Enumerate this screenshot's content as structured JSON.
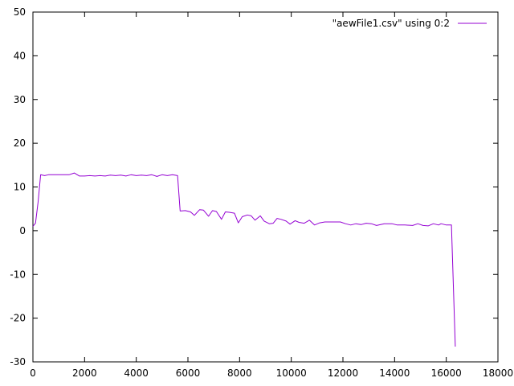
{
  "chart_data": {
    "type": "line",
    "title": "",
    "xlabel": "",
    "ylabel": "",
    "xlim": [
      0,
      18000
    ],
    "ylim": [
      -30,
      50
    ],
    "x_ticks": [
      0,
      2000,
      4000,
      6000,
      8000,
      10000,
      12000,
      14000,
      16000,
      18000
    ],
    "y_ticks": [
      -30,
      -20,
      -10,
      0,
      10,
      20,
      30,
      40,
      50
    ],
    "grid": false,
    "legend_position": "top-right",
    "series": [
      {
        "name": "\"aewFile1.csv\" using 0:2",
        "color": "#9400d3",
        "points": [
          [
            0,
            1.0
          ],
          [
            100,
            1.7
          ],
          [
            200,
            6.5
          ],
          [
            300,
            12.8
          ],
          [
            450,
            12.6
          ],
          [
            600,
            12.8
          ],
          [
            800,
            12.8
          ],
          [
            1000,
            12.8
          ],
          [
            1200,
            12.8
          ],
          [
            1400,
            12.8
          ],
          [
            1600,
            13.2
          ],
          [
            1800,
            12.5
          ],
          [
            2000,
            12.5
          ],
          [
            2200,
            12.6
          ],
          [
            2400,
            12.5
          ],
          [
            2600,
            12.6
          ],
          [
            2800,
            12.5
          ],
          [
            3000,
            12.7
          ],
          [
            3200,
            12.6
          ],
          [
            3400,
            12.7
          ],
          [
            3600,
            12.5
          ],
          [
            3800,
            12.8
          ],
          [
            4000,
            12.6
          ],
          [
            4200,
            12.7
          ],
          [
            4400,
            12.6
          ],
          [
            4600,
            12.8
          ],
          [
            4800,
            12.4
          ],
          [
            5000,
            12.8
          ],
          [
            5200,
            12.6
          ],
          [
            5400,
            12.8
          ],
          [
            5600,
            12.6
          ],
          [
            5700,
            4.5
          ],
          [
            5900,
            4.6
          ],
          [
            6100,
            4.3
          ],
          [
            6250,
            3.5
          ],
          [
            6450,
            4.8
          ],
          [
            6600,
            4.7
          ],
          [
            6800,
            3.3
          ],
          [
            6950,
            4.6
          ],
          [
            7100,
            4.4
          ],
          [
            7300,
            2.6
          ],
          [
            7450,
            4.3
          ],
          [
            7600,
            4.2
          ],
          [
            7800,
            4.0
          ],
          [
            7950,
            1.8
          ],
          [
            8100,
            3.2
          ],
          [
            8300,
            3.6
          ],
          [
            8450,
            3.4
          ],
          [
            8600,
            2.4
          ],
          [
            8800,
            3.4
          ],
          [
            8950,
            2.2
          ],
          [
            9150,
            1.6
          ],
          [
            9300,
            1.7
          ],
          [
            9450,
            2.8
          ],
          [
            9600,
            2.6
          ],
          [
            9800,
            2.2
          ],
          [
            9950,
            1.5
          ],
          [
            10150,
            2.3
          ],
          [
            10300,
            1.9
          ],
          [
            10500,
            1.7
          ],
          [
            10700,
            2.4
          ],
          [
            10900,
            1.3
          ],
          [
            11100,
            1.8
          ],
          [
            11300,
            2.0
          ],
          [
            11600,
            2.0
          ],
          [
            11900,
            2.0
          ],
          [
            12100,
            1.6
          ],
          [
            12300,
            1.3
          ],
          [
            12500,
            1.6
          ],
          [
            12700,
            1.4
          ],
          [
            12900,
            1.7
          ],
          [
            13100,
            1.6
          ],
          [
            13300,
            1.2
          ],
          [
            13600,
            1.6
          ],
          [
            13900,
            1.6
          ],
          [
            14100,
            1.3
          ],
          [
            14400,
            1.3
          ],
          [
            14700,
            1.2
          ],
          [
            14900,
            1.6
          ],
          [
            15100,
            1.2
          ],
          [
            15300,
            1.1
          ],
          [
            15500,
            1.6
          ],
          [
            15700,
            1.3
          ],
          [
            15800,
            1.6
          ],
          [
            16000,
            1.3
          ],
          [
            16200,
            1.3
          ],
          [
            16350,
            -26.5
          ]
        ]
      }
    ]
  }
}
